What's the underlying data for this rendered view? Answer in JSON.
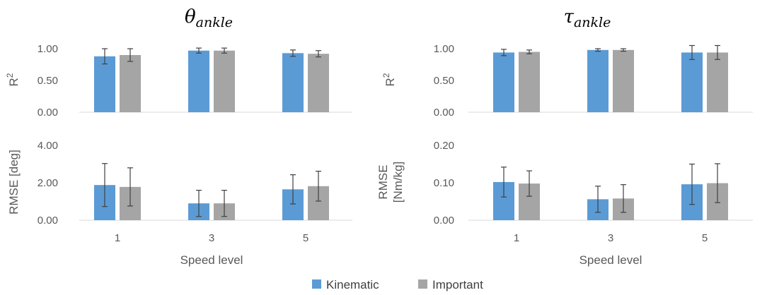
{
  "colors": {
    "kinematic": "#5b9bd5",
    "important": "#a5a5a5",
    "text": "#595959",
    "axis": "#d9d9d9"
  },
  "legend": {
    "kinematic": "Kinematic",
    "important": "Important"
  },
  "chart_data": [
    {
      "id": "theta-r2",
      "type": "bar",
      "title": {
        "symbol": "θ",
        "subscript": "ankle"
      },
      "ylabel": "R",
      "ylabel_sup": "2",
      "xlabel": "",
      "categories": [
        "1",
        "3",
        "5"
      ],
      "ylim": [
        0,
        1
      ],
      "yticks": [
        "0.00",
        "0.50",
        "1.00"
      ],
      "ytick_values": [
        0,
        0.5,
        1
      ],
      "series": [
        {
          "name": "Kinematic",
          "values": [
            0.88,
            0.97,
            0.93
          ],
          "errors": [
            0.12,
            0.04,
            0.05
          ]
        },
        {
          "name": "Important",
          "values": [
            0.9,
            0.97,
            0.92
          ],
          "errors": [
            0.1,
            0.04,
            0.05
          ]
        }
      ]
    },
    {
      "id": "theta-rmse",
      "type": "bar",
      "ylabel": "RMSE [deg]",
      "xlabel": "Speed level",
      "categories": [
        "1",
        "3",
        "5"
      ],
      "ylim": [
        0,
        4
      ],
      "yticks": [
        "0.00",
        "2.00",
        "4.00"
      ],
      "ytick_values": [
        0,
        2,
        4
      ],
      "series": [
        {
          "name": "Kinematic",
          "values": [
            1.88,
            0.9,
            1.65
          ],
          "errors": [
            1.15,
            0.7,
            0.78
          ]
        },
        {
          "name": "Important",
          "values": [
            1.78,
            0.9,
            1.82
          ],
          "errors": [
            1.02,
            0.7,
            0.8
          ]
        }
      ]
    },
    {
      "id": "tau-r2",
      "type": "bar",
      "title": {
        "symbol": "τ",
        "subscript": "ankle"
      },
      "ylabel": "R",
      "ylabel_sup": "2",
      "xlabel": "",
      "categories": [
        "1",
        "3",
        "5"
      ],
      "ylim": [
        0,
        1
      ],
      "yticks": [
        "0.00",
        "0.50",
        "1.00"
      ],
      "ytick_values": [
        0,
        0.5,
        1
      ],
      "series": [
        {
          "name": "Kinematic",
          "values": [
            0.94,
            0.98,
            0.94
          ],
          "errors": [
            0.05,
            0.02,
            0.11
          ]
        },
        {
          "name": "Important",
          "values": [
            0.95,
            0.98,
            0.94
          ],
          "errors": [
            0.03,
            0.02,
            0.11
          ]
        }
      ]
    },
    {
      "id": "tau-rmse",
      "type": "bar",
      "ylabel": "RMSE",
      "ylabel2": "[Nm/kg]",
      "xlabel": "Speed level",
      "categories": [
        "1",
        "3",
        "5"
      ],
      "ylim": [
        0,
        0.2
      ],
      "yticks": [
        "0.00",
        "0.10",
        "0.20"
      ],
      "ytick_values": [
        0,
        0.1,
        0.2
      ],
      "series": [
        {
          "name": "Kinematic",
          "values": [
            0.102,
            0.056,
            0.096
          ],
          "errors": [
            0.04,
            0.035,
            0.054
          ]
        },
        {
          "name": "Important",
          "values": [
            0.098,
            0.058,
            0.099
          ],
          "errors": [
            0.034,
            0.037,
            0.052
          ]
        }
      ]
    }
  ]
}
